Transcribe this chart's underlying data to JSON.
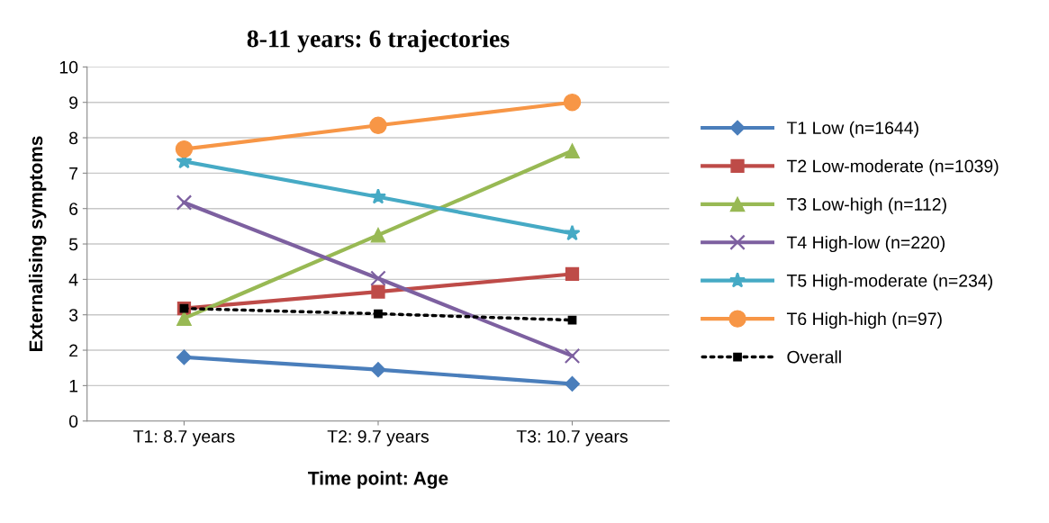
{
  "chart_data": {
    "type": "line",
    "title": "8-11 years: 6 trajectories",
    "xlabel": "Time point: Age",
    "ylabel": "Externalising symptoms",
    "categories": [
      "T1: 8.7 years",
      "T2: 9.7 years",
      "T3: 10.7 years"
    ],
    "ylim": [
      0,
      10
    ],
    "yticks": [
      0,
      1,
      2,
      3,
      4,
      5,
      6,
      7,
      8,
      9,
      10
    ],
    "grid": "y",
    "legend": "right",
    "line_style": "solid",
    "series": [
      {
        "name": "T1 Low (n=1644)",
        "color": "#4a7ebb",
        "marker": "diamond",
        "values": [
          1.8,
          1.45,
          1.05
        ]
      },
      {
        "name": "T2 Low-moderate (n=1039)",
        "color": "#be4b48",
        "marker": "square",
        "values": [
          3.18,
          3.65,
          4.15
        ]
      },
      {
        "name": "T3 Low-high (n=112)",
        "color": "#98b954",
        "marker": "triangle",
        "values": [
          2.9,
          5.25,
          7.63
        ]
      },
      {
        "name": "T4 High-low (n=220)",
        "color": "#7d60a0",
        "marker": "cross",
        "values": [
          6.17,
          4.03,
          1.84
        ]
      },
      {
        "name": "T5 High-moderate (n=234)",
        "color": "#46aac5",
        "marker": "star",
        "values": [
          7.33,
          6.33,
          5.3
        ]
      },
      {
        "name": "T6 High-high (n=97)",
        "color": "#f79646",
        "marker": "circle",
        "values": [
          7.68,
          8.35,
          9.0
        ]
      },
      {
        "name": "Overall",
        "color": "#000000",
        "marker": "square",
        "line_style": "dotted",
        "values": [
          3.18,
          3.03,
          2.85
        ]
      }
    ]
  }
}
